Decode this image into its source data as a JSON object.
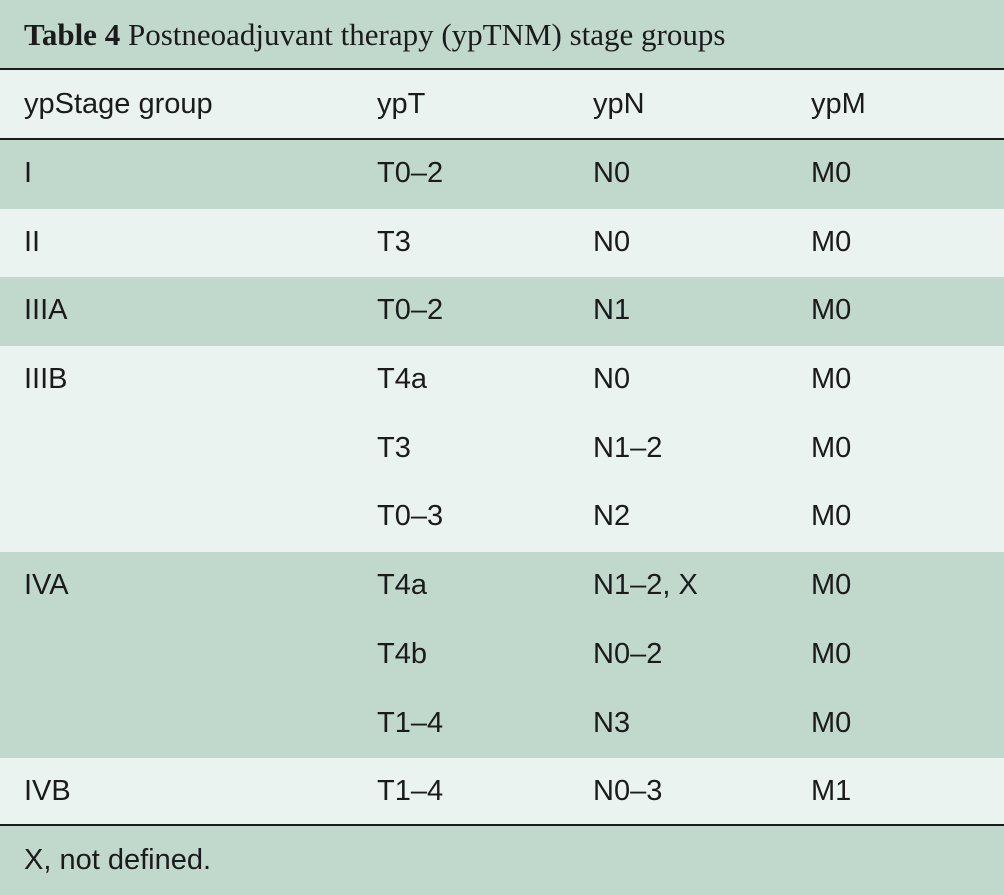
{
  "caption": {
    "label": "Table 4",
    "title": "Postneoadjuvant therapy (ypTNM) stage groups"
  },
  "headers": [
    "ypStage group",
    "ypT",
    "ypN",
    "ypM"
  ],
  "groups": [
    {
      "shade": "green",
      "stage": "I",
      "rows": [
        [
          "T0–2",
          "N0",
          "M0"
        ]
      ]
    },
    {
      "shade": "light",
      "stage": "II",
      "rows": [
        [
          "T3",
          "N0",
          "M0"
        ]
      ]
    },
    {
      "shade": "green",
      "stage": "IIIA",
      "rows": [
        [
          "T0–2",
          "N1",
          "M0"
        ]
      ]
    },
    {
      "shade": "light",
      "stage": "IIIB",
      "rows": [
        [
          "T4a",
          "N0",
          "M0"
        ],
        [
          "T3",
          "N1–2",
          "M0"
        ],
        [
          "T0–3",
          "N2",
          "M0"
        ]
      ]
    },
    {
      "shade": "green",
      "stage": "IVA",
      "rows": [
        [
          "T4a",
          "N1–2, X",
          "M0"
        ],
        [
          "T4b",
          "N0–2",
          "M0"
        ],
        [
          "T1–4",
          "N3",
          "M0"
        ]
      ]
    },
    {
      "shade": "light",
      "stage": "IVB",
      "rows": [
        [
          "T1–4",
          "N0–3",
          "M1"
        ]
      ]
    }
  ],
  "footnote": "X, not defined.",
  "colors": {
    "shade_green": "#c1d8cc",
    "shade_light": "#eaf3ef",
    "rule": "#1b1b1b"
  }
}
